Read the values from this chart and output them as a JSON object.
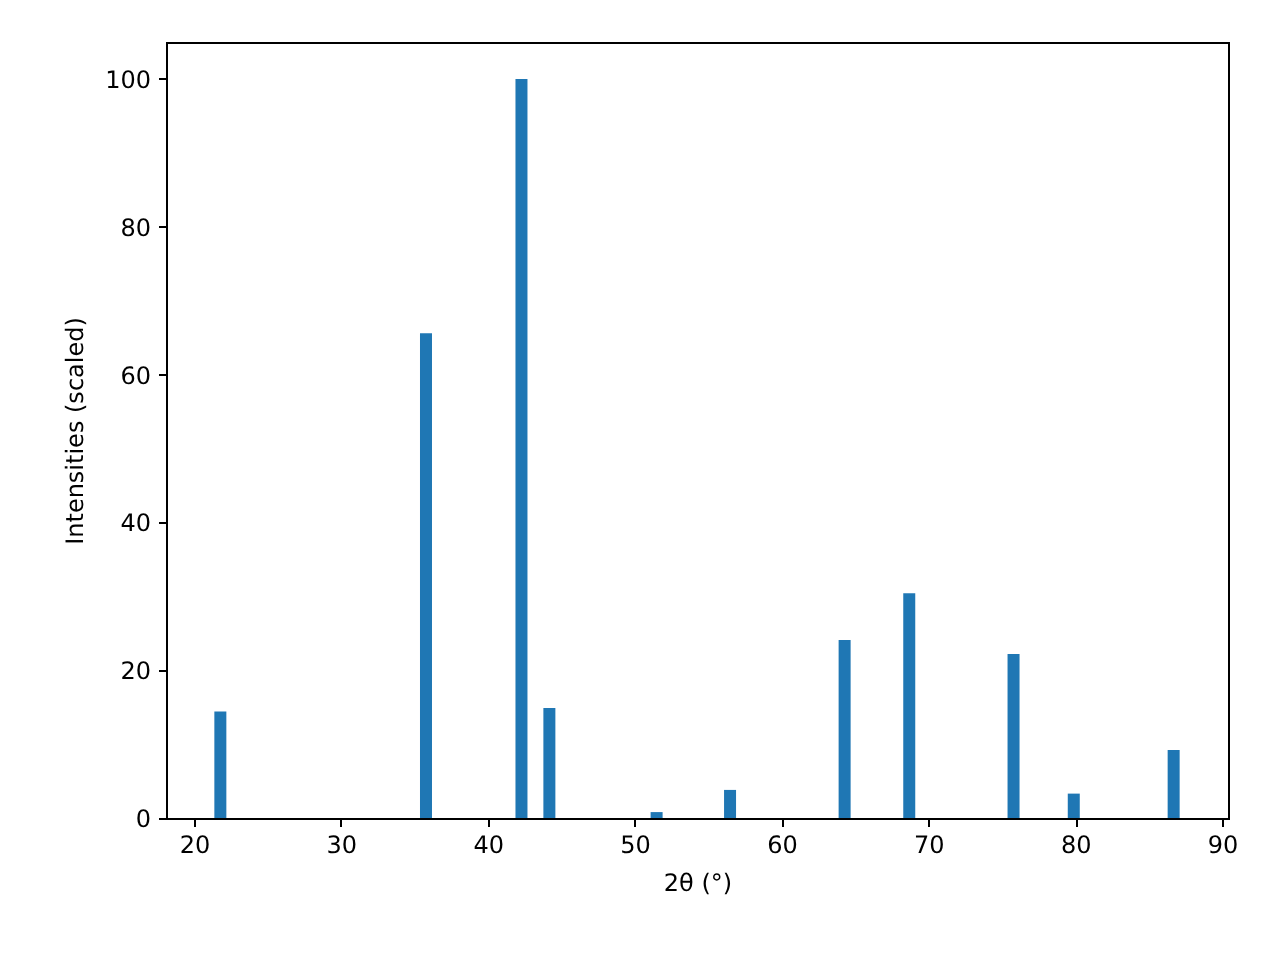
{
  "chart_data": {
    "type": "bar",
    "xlabel": "2θ (°)",
    "ylabel": "Intensities (scaled)",
    "x": [
      21.8,
      35.8,
      42.3,
      44.2,
      51.5,
      56.5,
      64.3,
      68.7,
      75.8,
      79.9,
      86.7
    ],
    "values": [
      14.4,
      65.6,
      100,
      14.9,
      0.8,
      3.8,
      24.1,
      30.4,
      22.2,
      3.3,
      9.2
    ],
    "color": "#1f77b4",
    "xlim": [
      18.1,
      90.4
    ],
    "xticks": [
      20,
      30,
      40,
      50,
      60,
      70,
      80,
      90
    ],
    "ylim": [
      0,
      105
    ],
    "yticks": [
      0,
      20,
      40,
      60,
      80,
      100
    ],
    "grid": false,
    "legend": false
  }
}
